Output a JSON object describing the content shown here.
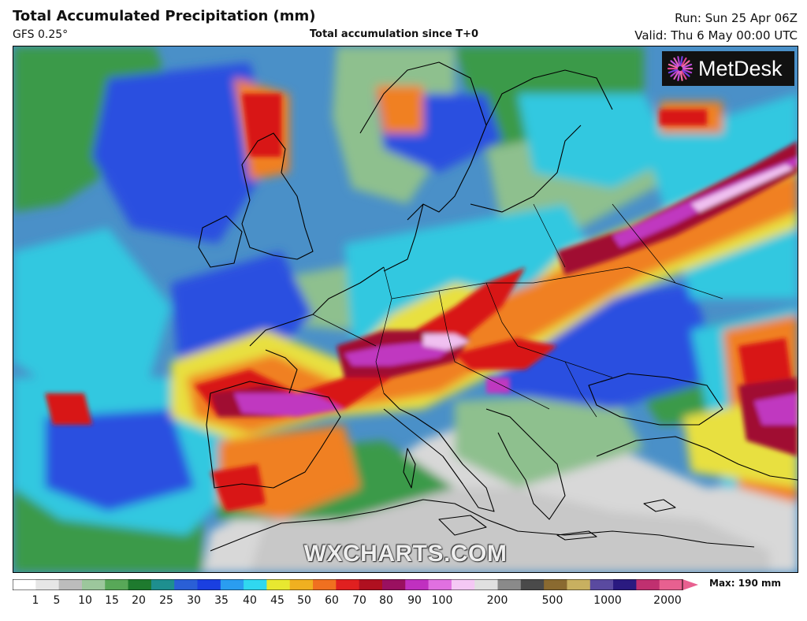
{
  "header": {
    "title": "Total Accumulated Precipitation (mm)",
    "model": "GFS 0.25°",
    "subtitle": "Total accumulation since T+0",
    "run": "Run: Sun 25 Apr 06Z",
    "valid": "Valid: Thu 6 May 00:00 UTC"
  },
  "logo": {
    "name": "MetDesk",
    "icon": "metdesk-starburst-icon"
  },
  "watermark": "WXCHARTS.COM",
  "legend": {
    "max_label": "Max: 190 mm",
    "ticks": [
      "1",
      "5",
      "10",
      "15",
      "20",
      "25",
      "30",
      "35",
      "40",
      "45",
      "50",
      "60",
      "70",
      "80",
      "90",
      "100",
      "200",
      "500",
      "1000",
      "2000"
    ],
    "colors": [
      "#ffffff",
      "#e6e6e6",
      "#bcbcbc",
      "#9cc79c",
      "#58a858",
      "#1e7a2e",
      "#1e8f8f",
      "#2a5fd6",
      "#1a3fe0",
      "#2a9df0",
      "#30d8f0",
      "#e8e830",
      "#f0b020",
      "#f07020",
      "#e02020",
      "#b01020",
      "#9a1060",
      "#c030c0",
      "#e070e0",
      "#f4c8f4",
      "#e0e0e0",
      "#8a8a8a",
      "#4a4a4a",
      "#8a6a30",
      "#c8b060",
      "#5a4aa0",
      "#2a1a80",
      "#c03070",
      "#e86090"
    ]
  },
  "map": {
    "region": "Europe and North Africa",
    "palette": {
      "ocean_base": "#4a90c8",
      "dry": "#d8d8d8",
      "light": "#8ec08e",
      "green": "#3a9a4a",
      "cyan": "#30c8e0",
      "blue": "#2a4fe0",
      "yellow": "#e8e040",
      "orange": "#f08020",
      "red": "#d81818",
      "darkred": "#a01030",
      "magenta": "#c038c0",
      "pink": "#f0c0f0",
      "coast": "#000000"
    }
  }
}
